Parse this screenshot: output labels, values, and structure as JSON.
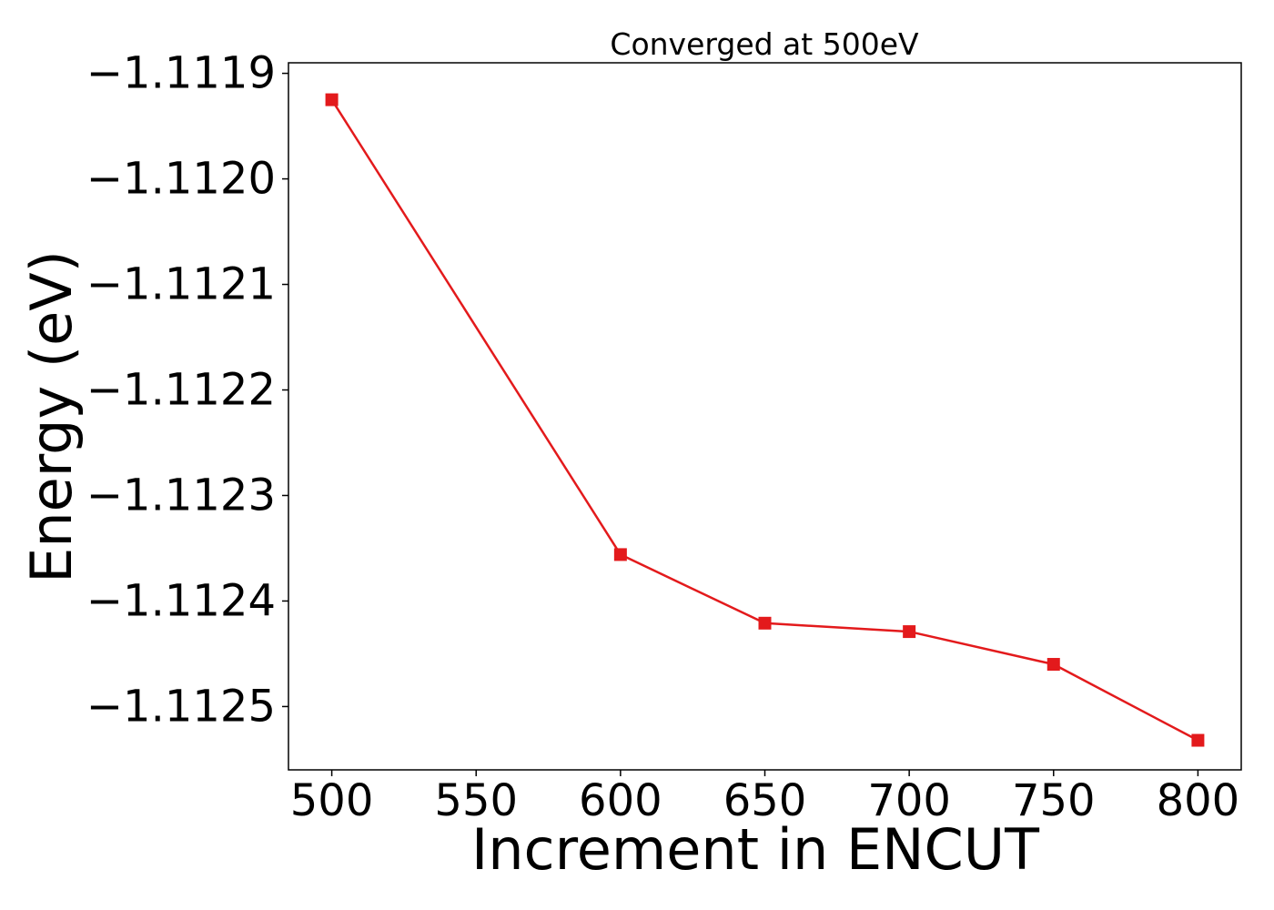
{
  "chart_data": {
    "type": "line",
    "title": "Converged at 500eV",
    "xlabel": "Increment in ENCUT",
    "ylabel": "Energy (eV)",
    "x": [
      500,
      600,
      650,
      700,
      750,
      800
    ],
    "series": [
      {
        "values": [
          -1.111925,
          -1.112356,
          -1.112421,
          -1.112429,
          -1.11246,
          -1.112532
        ],
        "color": "#e31a1c",
        "marker": "square"
      }
    ],
    "xticks": [
      500,
      550,
      600,
      650,
      700,
      750,
      800
    ],
    "xtick_labels": [
      "500",
      "550",
      "600",
      "650",
      "700",
      "750",
      "800"
    ],
    "yticks": [
      -1.1119,
      -1.112,
      -1.1121,
      -1.1122,
      -1.1123,
      -1.1124,
      -1.1125
    ],
    "ytick_labels": [
      "−1.1119",
      "−1.1120",
      "−1.1121",
      "−1.1122",
      "−1.1123",
      "−1.1124",
      "−1.1125"
    ],
    "xlim": [
      485,
      815
    ],
    "ylim": [
      -1.11256,
      -1.11189
    ],
    "grid": false,
    "legend": "none"
  }
}
